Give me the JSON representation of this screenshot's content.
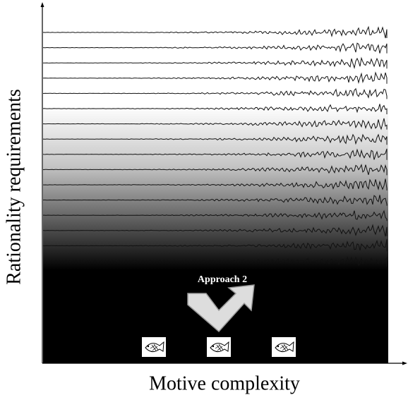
{
  "axes": {
    "y_label": "Rationality requirements",
    "x_label": "Motive complexity"
  },
  "annotation": {
    "label": "Approach 2"
  }
}
